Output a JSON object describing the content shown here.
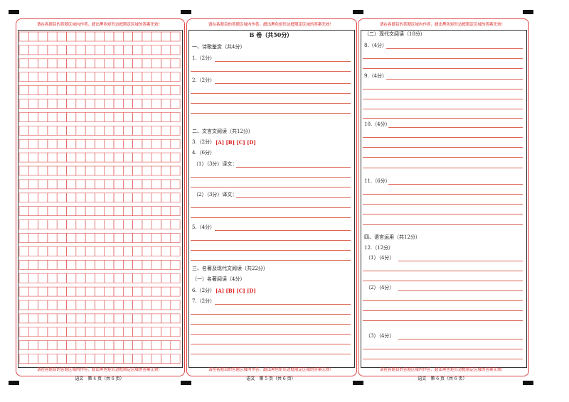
{
  "warning": "请在各题目的答题区域内作答，超出黑色矩形边框限定区域的答案无效！",
  "footers": [
    "语文　第 4 页（共 6 页）",
    "语文　第 5 页（共 6 页）",
    "语文　第 6 页（共 6 页）"
  ],
  "page5": {
    "title": "B 卷（共50分）",
    "items": [
      "一、诗歌鉴赏（共4分）",
      "1.（2分）",
      "2.（2分）",
      "二、文言文阅读（共12分）",
      "3.（2分）",
      "4.（6分）",
      "（1）（3分）译文：",
      "（2）（3分）译文：",
      "5.（4分）",
      "三、名著及现代文阅读（共22分）",
      "（一）名著阅读（4分）",
      "6.（2分）",
      "7.（2分）"
    ],
    "options": [
      "[A] [B] [C] [D]",
      "[A] [B] [C] [D]"
    ]
  },
  "page6": {
    "items": [
      "（二）现代文阅读（18分）",
      "8.（4分）",
      "9.（4分）",
      "10.（4分）",
      "11.（6分）",
      "四、语言运用（共12分）",
      "12.（12分）",
      "（1）（4分）",
      "（2）（4分）",
      "（3）（4分）"
    ]
  }
}
